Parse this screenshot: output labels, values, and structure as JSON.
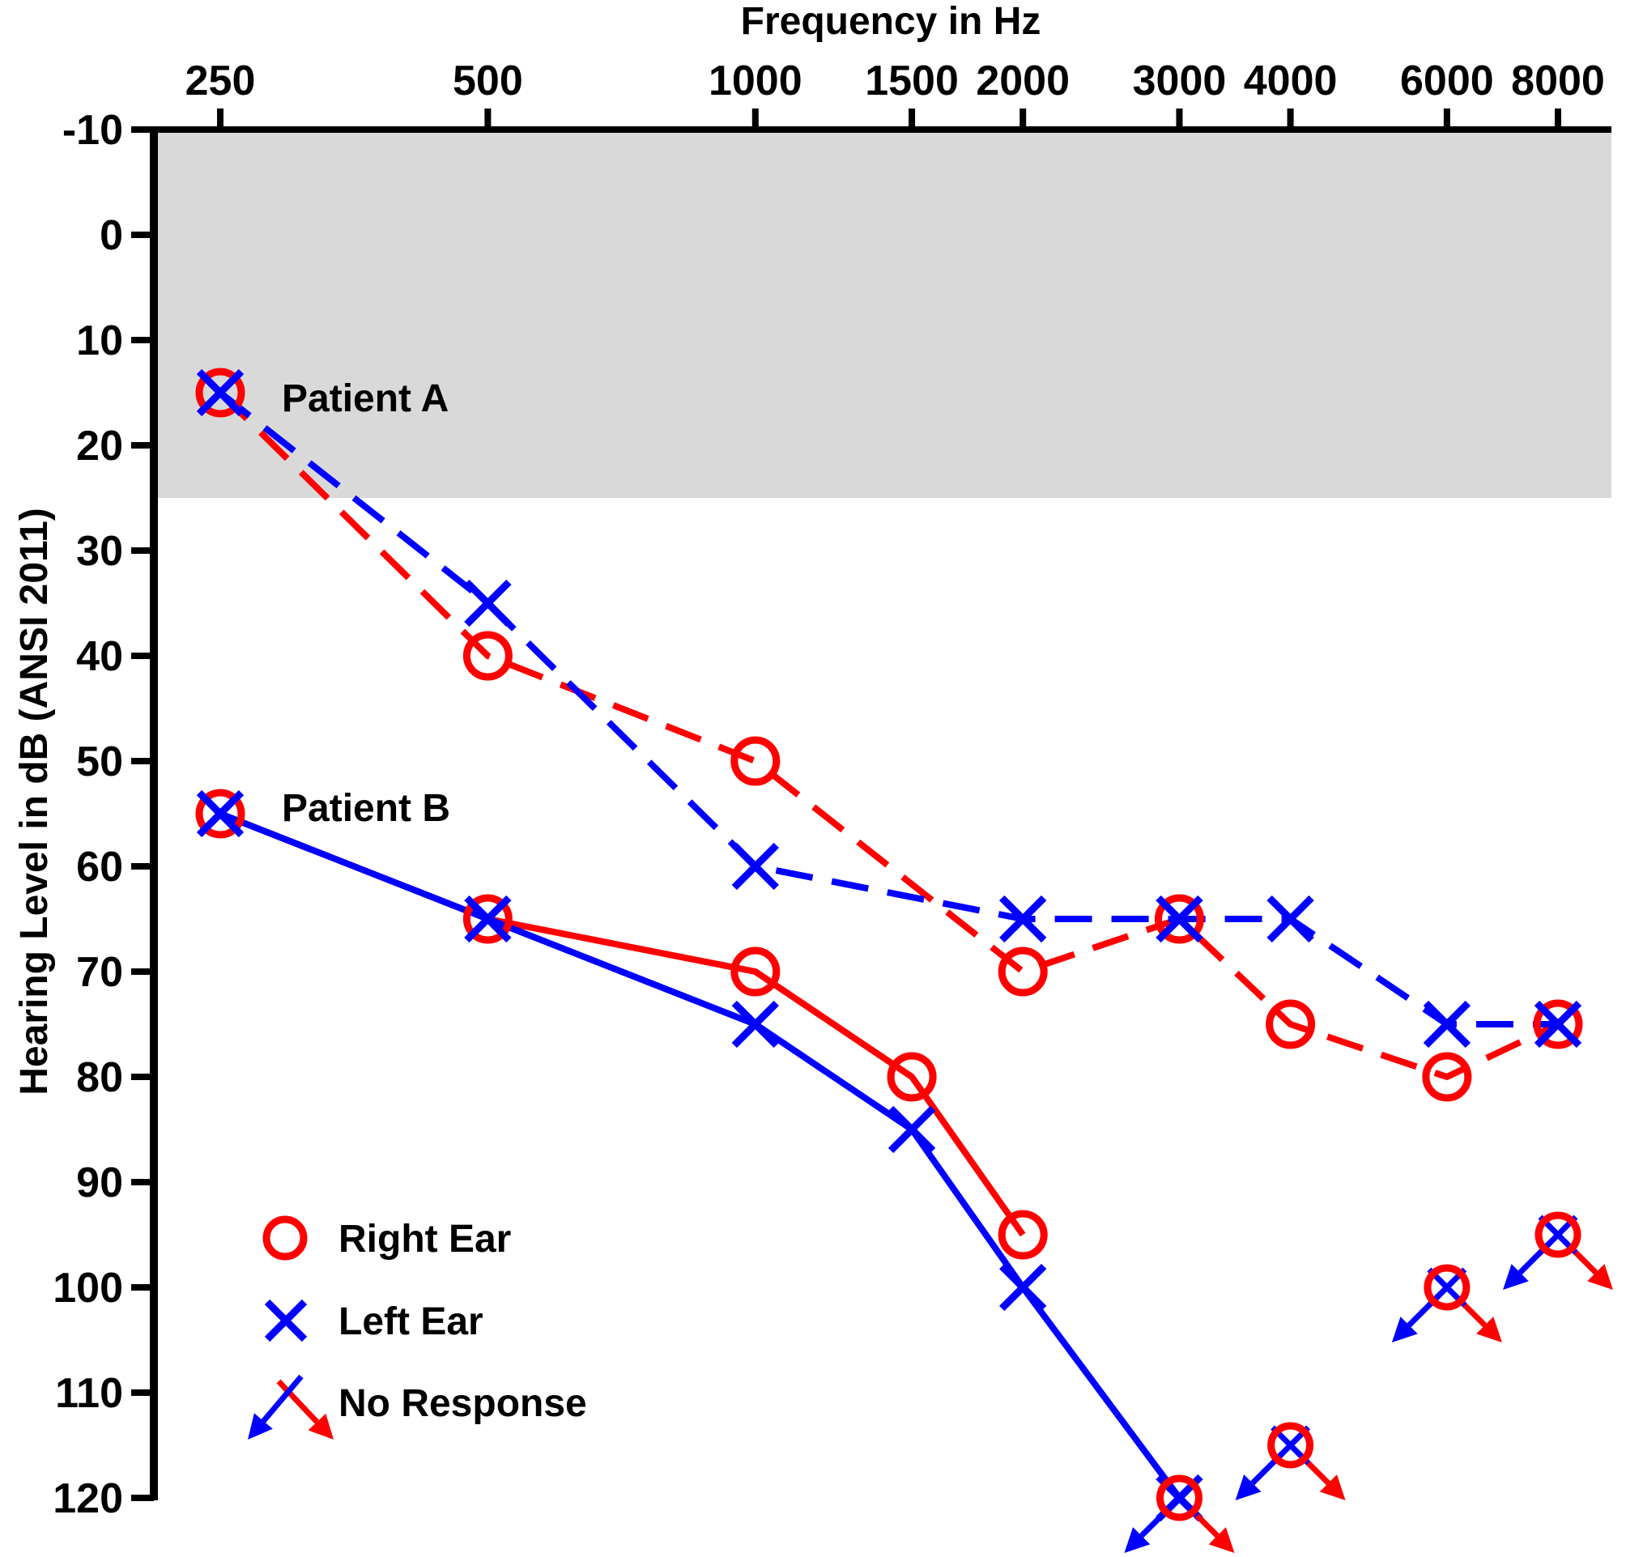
{
  "chart_data": {
    "type": "line",
    "title": "",
    "xlabel": "Frequency in Hz",
    "ylabel": "Hearing Level in dB (ANSI 2011)",
    "x_ticks": [
      "250",
      "500",
      "1000",
      "1500",
      "2000",
      "3000",
      "4000",
      "6000",
      "8000"
    ],
    "x_scale": "log",
    "y_ticks": [
      "-10",
      "0",
      "10",
      "20",
      "30",
      "40",
      "50",
      "60",
      "70",
      "80",
      "90",
      "100",
      "110",
      "120"
    ],
    "ylim": [
      -10,
      120
    ],
    "y_inverted": true,
    "normal_range_shading": [
      -10,
      25
    ],
    "annotations": [
      "Patient A",
      "Patient B"
    ],
    "legend": {
      "placement": "bottom-left",
      "items": [
        {
          "label": "Right Ear",
          "symbol": "circle"
        },
        {
          "label": "Left Ear",
          "symbol": "x"
        },
        {
          "label": "No Response",
          "symbol": "arrows"
        }
      ]
    },
    "colors": {
      "right_ear": "#ff0000",
      "left_ear": "#0000ff",
      "shading": "#d9d9d9"
    },
    "series": [
      {
        "patient": "Patient A",
        "ear": "Right Ear",
        "style": "dashed",
        "color": "#ff0000",
        "symbol": "circle",
        "points": [
          [
            250,
            15
          ],
          [
            500,
            40
          ],
          [
            1000,
            50
          ],
          [
            2000,
            70
          ],
          [
            3000,
            65
          ],
          [
            4000,
            75
          ],
          [
            6000,
            80
          ],
          [
            8000,
            75
          ]
        ]
      },
      {
        "patient": "Patient A",
        "ear": "Left Ear",
        "style": "dashed",
        "color": "#0000ff",
        "symbol": "x",
        "points": [
          [
            250,
            15
          ],
          [
            500,
            35
          ],
          [
            1000,
            60
          ],
          [
            2000,
            65
          ],
          [
            3000,
            65
          ],
          [
            4000,
            65
          ],
          [
            6000,
            75
          ],
          [
            8000,
            75
          ]
        ]
      },
      {
        "patient": "Patient B",
        "ear": "Right Ear",
        "style": "solid",
        "color": "#ff0000",
        "symbol": "circle",
        "points": [
          [
            250,
            55
          ],
          [
            500,
            65
          ],
          [
            1000,
            70
          ],
          [
            1500,
            80
          ],
          [
            2000,
            95
          ]
        ]
      },
      {
        "patient": "Patient B",
        "ear": "Left Ear",
        "style": "solid",
        "color": "#0000ff",
        "symbol": "x",
        "points": [
          [
            250,
            55
          ],
          [
            500,
            65
          ],
          [
            1000,
            75
          ],
          [
            1500,
            85
          ],
          [
            2000,
            100
          ],
          [
            3000,
            120
          ]
        ]
      }
    ],
    "no_response": [
      {
        "x": 3000,
        "y": 120
      },
      {
        "x": 4000,
        "y": 115
      },
      {
        "x": 6000,
        "y": 100
      },
      {
        "x": 8000,
        "y": 95
      }
    ]
  }
}
